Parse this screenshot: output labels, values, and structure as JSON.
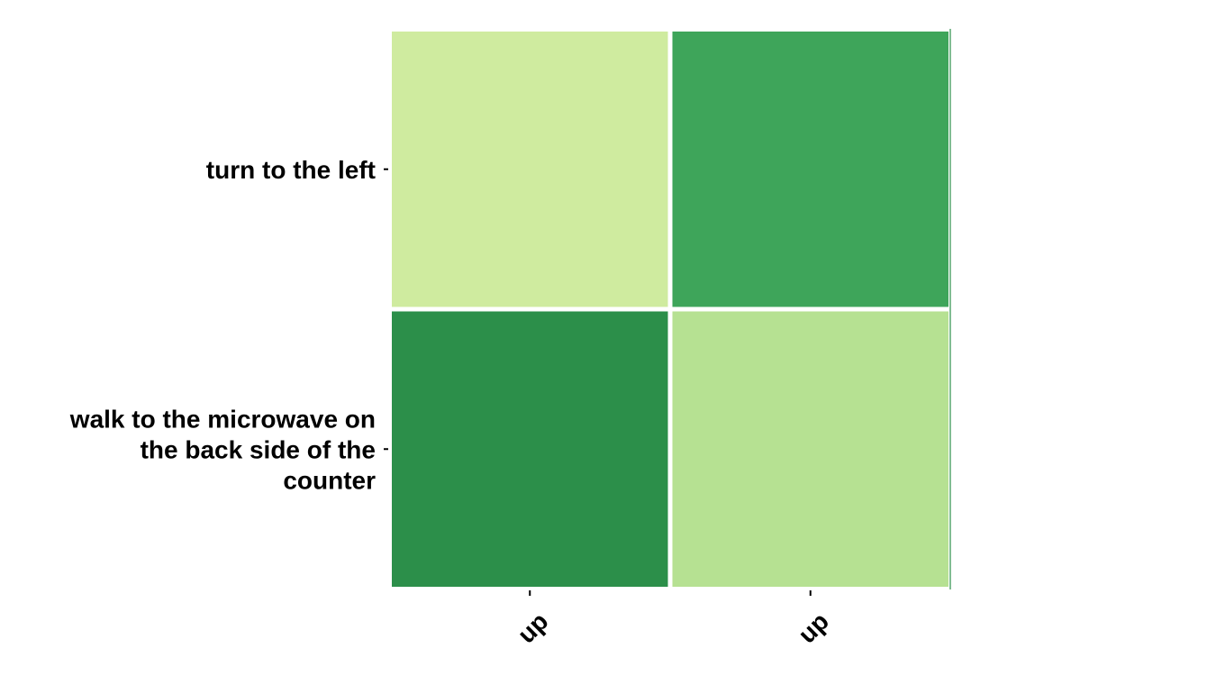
{
  "chart_data": {
    "type": "heatmap",
    "rows": [
      [
        "turn to the left"
      ],
      [
        "walk to the microwave on",
        "the back side of the",
        "counter"
      ]
    ],
    "columns": [
      "up",
      "up"
    ],
    "cells": [
      [
        {
          "color": "#cfeb9f"
        },
        {
          "color": "#3ea55a"
        }
      ],
      [
        {
          "color": "#2c8f4a"
        },
        {
          "color": "#b6e192"
        }
      ]
    ],
    "title": "",
    "xlabel": "",
    "ylabel": "",
    "legend": "none",
    "grid": false
  }
}
